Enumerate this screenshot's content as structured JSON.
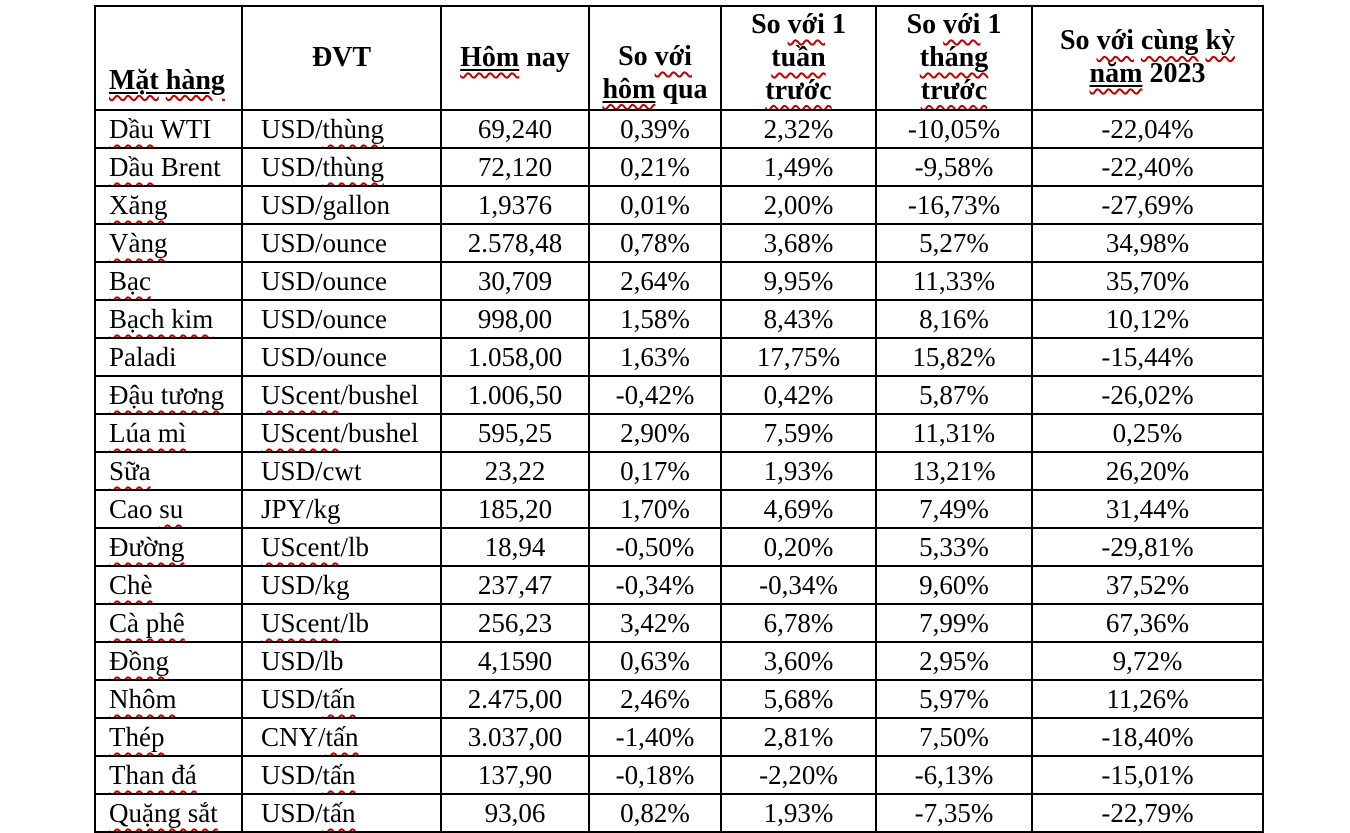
{
  "colors": {
    "background": "#FFFFFF",
    "border": "#000000",
    "text": "#000000",
    "spellcheck_squiggle": "#C00000"
  },
  "table": {
    "title": "commodity-prices",
    "columns": [
      {
        "id": "mat-hang",
        "label": "Mặt hàng",
        "header_lines": [
          [
            {
              "t": "Mặt",
              "u": true,
              "sq": true
            },
            {
              "t": " ",
              "u": true
            },
            {
              "t": "hàng",
              "u": true,
              "sq": true
            }
          ]
        ]
      },
      {
        "id": "dvt",
        "label": "ĐVT",
        "header_lines": [
          [
            {
              "t": "ĐVT"
            }
          ]
        ]
      },
      {
        "id": "hom-nay",
        "label": "Hôm nay",
        "header_lines": [
          [
            {
              "t": "Hôm",
              "u": true,
              "sq": true
            },
            {
              "t": " nay"
            }
          ]
        ]
      },
      {
        "id": "so-voi-hom-qua",
        "label": "So với hôm qua",
        "header_lines": [
          [
            {
              "t": "So "
            },
            {
              "t": "với",
              "sq": true
            }
          ],
          [
            {
              "t": "hôm",
              "u": true,
              "sq": true
            },
            {
              "t": " qua"
            }
          ]
        ]
      },
      {
        "id": "so-voi-1-tuan-truoc",
        "label": "So với 1 tuần trước",
        "header_lines": [
          [
            {
              "t": "So "
            },
            {
              "t": "với",
              "sq": true
            },
            {
              "t": " 1"
            }
          ],
          [
            {
              "t": "tuần",
              "sq": true
            }
          ],
          [
            {
              "t": "trước",
              "sq": true
            }
          ]
        ]
      },
      {
        "id": "so-voi-1-thang-truoc",
        "label": "So với 1 tháng trước",
        "header_lines": [
          [
            {
              "t": "So "
            },
            {
              "t": "với",
              "sq": true
            },
            {
              "t": " 1"
            }
          ],
          [
            {
              "t": "tháng",
              "sq": true
            }
          ],
          [
            {
              "t": "trước",
              "sq": true
            }
          ]
        ]
      },
      {
        "id": "so-voi-cung-ky-nam-2023",
        "label": "So với cùng kỳ năm 2023",
        "header_lines": [
          [
            {
              "t": "So "
            },
            {
              "t": "với",
              "sq": true
            },
            {
              "t": " "
            },
            {
              "t": "cùng",
              "sq": true
            },
            {
              "t": " "
            },
            {
              "t": "kỳ",
              "sq": true
            }
          ],
          [
            {
              "t": "năm",
              "u": true,
              "sq": true
            },
            {
              "t": " 2023"
            }
          ]
        ]
      }
    ],
    "rows": [
      {
        "name": [
          {
            "t": "Dầu",
            "sq": true
          },
          {
            "t": " WTI"
          }
        ],
        "unit": [
          {
            "t": "USD/"
          },
          {
            "t": "thùng",
            "sq": true
          }
        ],
        "values": [
          "69,240",
          "0,39%",
          "2,32%",
          "-10,05%",
          "-22,04%"
        ]
      },
      {
        "name": [
          {
            "t": "Dầu",
            "sq": true
          },
          {
            "t": " Brent"
          }
        ],
        "unit": [
          {
            "t": "USD/"
          },
          {
            "t": "thùng",
            "sq": true
          }
        ],
        "values": [
          "72,120",
          "0,21%",
          "1,49%",
          "-9,58%",
          "-22,40%"
        ]
      },
      {
        "name": [
          {
            "t": "Xăng",
            "sq": true
          }
        ],
        "unit": [
          {
            "t": "USD/gallon"
          }
        ],
        "values": [
          "1,9376",
          "0,01%",
          "2,00%",
          "-16,73%",
          "-27,69%"
        ]
      },
      {
        "name": [
          {
            "t": "Vàng",
            "sq": true
          }
        ],
        "unit": [
          {
            "t": "USD/ounce"
          }
        ],
        "values": [
          "2.578,48",
          "0,78%",
          "3,68%",
          "5,27%",
          "34,98%"
        ]
      },
      {
        "name": [
          {
            "t": "Bạc",
            "sq": true
          }
        ],
        "unit": [
          {
            "t": "USD/ounce"
          }
        ],
        "values": [
          "30,709",
          "2,64%",
          "9,95%",
          "11,33%",
          "35,70%"
        ]
      },
      {
        "name": [
          {
            "t": "Bạch kim",
            "sq": true
          }
        ],
        "unit": [
          {
            "t": "USD/ounce"
          }
        ],
        "values": [
          "998,00",
          "1,58%",
          "8,43%",
          "8,16%",
          "10,12%"
        ]
      },
      {
        "name": [
          {
            "t": "Paladi"
          }
        ],
        "unit": [
          {
            "t": "USD/ounce"
          }
        ],
        "values": [
          "1.058,00",
          "1,63%",
          "17,75%",
          "15,82%",
          "-15,44%"
        ]
      },
      {
        "name": [
          {
            "t": "Đậu tương",
            "sq": true
          }
        ],
        "unit": [
          {
            "t": "UScent",
            "sq": true
          },
          {
            "t": "/bushel"
          }
        ],
        "values": [
          "1.006,50",
          "-0,42%",
          "0,42%",
          "5,87%",
          "-26,02%"
        ]
      },
      {
        "name": [
          {
            "t": "Lúa mì",
            "sq": true
          }
        ],
        "unit": [
          {
            "t": "UScent",
            "sq": true
          },
          {
            "t": "/bushel"
          }
        ],
        "values": [
          "595,25",
          "2,90%",
          "7,59%",
          "11,31%",
          "0,25%"
        ]
      },
      {
        "name": [
          {
            "t": "Sữa",
            "sq": true
          }
        ],
        "unit": [
          {
            "t": "USD/cwt"
          }
        ],
        "values": [
          "23,22",
          "0,17%",
          "1,93%",
          "13,21%",
          "26,20%"
        ]
      },
      {
        "name": [
          {
            "t": "Cao "
          },
          {
            "t": "su",
            "sq": true
          }
        ],
        "unit": [
          {
            "t": "JPY/kg"
          }
        ],
        "values": [
          "185,20",
          "1,70%",
          "4,69%",
          "7,49%",
          "31,44%"
        ]
      },
      {
        "name": [
          {
            "t": "Đường",
            "sq": true
          }
        ],
        "unit": [
          {
            "t": "UScent",
            "sq": true
          },
          {
            "t": "/lb"
          }
        ],
        "values": [
          "18,94",
          "-0,50%",
          "0,20%",
          "5,33%",
          "-29,81%"
        ]
      },
      {
        "name": [
          {
            "t": "Chè",
            "sq": true
          }
        ],
        "unit": [
          {
            "t": "USD/kg"
          }
        ],
        "values": [
          "237,47",
          "-0,34%",
          "-0,34%",
          "9,60%",
          "37,52%"
        ]
      },
      {
        "name": [
          {
            "t": "Cà phê",
            "sq": true
          }
        ],
        "unit": [
          {
            "t": "UScent",
            "sq": true
          },
          {
            "t": "/lb"
          }
        ],
        "values": [
          "256,23",
          "3,42%",
          "6,78%",
          "7,99%",
          "67,36%"
        ]
      },
      {
        "name": [
          {
            "t": "Đồng",
            "sq": true
          }
        ],
        "unit": [
          {
            "t": "USD/lb"
          }
        ],
        "values": [
          "4,1590",
          "0,63%",
          "3,60%",
          "2,95%",
          "9,72%"
        ]
      },
      {
        "name": [
          {
            "t": "Nhôm",
            "sq": true
          }
        ],
        "unit": [
          {
            "t": "USD/"
          },
          {
            "t": "tấn",
            "sq": true
          }
        ],
        "values": [
          "2.475,00",
          "2,46%",
          "5,68%",
          "5,97%",
          "11,26%"
        ]
      },
      {
        "name": [
          {
            "t": "Thép",
            "sq": true
          }
        ],
        "unit": [
          {
            "t": "CNY/"
          },
          {
            "t": "tấn",
            "sq": true
          }
        ],
        "values": [
          "3.037,00",
          "-1,40%",
          "2,81%",
          "7,50%",
          "-18,40%"
        ]
      },
      {
        "name": [
          {
            "t": "Than đá",
            "sq": true
          }
        ],
        "unit": [
          {
            "t": "USD/"
          },
          {
            "t": "tấn",
            "sq": true
          }
        ],
        "values": [
          "137,90",
          "-0,18%",
          "-2,20%",
          "-6,13%",
          "-15,01%"
        ]
      },
      {
        "name": [
          {
            "t": "Quặng sắt",
            "sq": true
          }
        ],
        "unit": [
          {
            "t": "USD/"
          },
          {
            "t": "tấn",
            "sq": true
          }
        ],
        "values": [
          "93,06",
          "0,82%",
          "1,93%",
          "-7,35%",
          "-22,79%"
        ]
      }
    ]
  }
}
